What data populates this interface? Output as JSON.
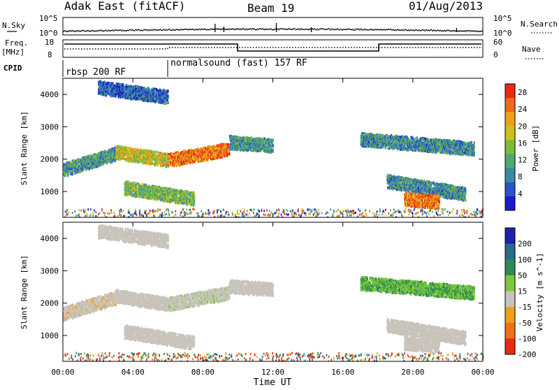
{
  "header": {
    "radar": "Adak East (fitACF)",
    "beam": "Beam 19",
    "date": "01/Aug/2013"
  },
  "top_panels": {
    "nsky_label": "N.Sky",
    "nsearch_label": "N.Search",
    "noise_ticks_left": [
      "10^5",
      "10^0"
    ],
    "noise_ticks_right": [
      "10^5",
      "10^0"
    ],
    "freq_label_line1": "Freq.",
    "freq_label_line2": "[MHz]",
    "freq_ticks": [
      "18",
      "8"
    ],
    "nave_label": "Nave",
    "nave_ticks": [
      "60",
      "0"
    ],
    "cpid_label": "CPID",
    "cpid_segments": [
      {
        "label": "rbsp 200 RF",
        "start_hour": 0,
        "end_hour": 6
      },
      {
        "label": "normalsound (fast) 157 RF",
        "start_hour": 6,
        "end_hour": 24
      }
    ]
  },
  "chart_data": [
    {
      "type": "heatmap",
      "title": "",
      "xlabel": "Time UT",
      "ylabel": "Slant Range [km]",
      "xlim": [
        0,
        24
      ],
      "ylim": [
        200,
        4500
      ],
      "x_ticks": [
        "00:00",
        "04:00",
        "08:00",
        "12:00",
        "16:00",
        "20:00",
        "00:00"
      ],
      "y_ticks": [
        1000,
        2000,
        3000,
        4000
      ],
      "colorbar": {
        "label": "Power [dB]",
        "ticks": [
          4,
          8,
          12,
          16,
          20,
          24,
          28
        ],
        "range": [
          0,
          30
        ],
        "colors": [
          "#1a1acc",
          "#2a55c8",
          "#3b8aa5",
          "#4fa870",
          "#7dbb3a",
          "#c9c21e",
          "#f0a018",
          "#f06818",
          "#e82a10"
        ]
      },
      "features": [
        {
          "name": "band-a",
          "start_hour": 0.0,
          "end_hour": 3.0,
          "range_start_km": 1650,
          "range_end_km": 2150,
          "value": 10
        },
        {
          "name": "band-b",
          "start_hour": 3.0,
          "end_hour": 6.0,
          "range_start_km": 2200,
          "range_end_km": 1950,
          "value": 18
        },
        {
          "name": "band-c",
          "start_hour": 6.0,
          "end_hour": 9.5,
          "range_start_km": 1950,
          "range_end_km": 2300,
          "value": 24
        },
        {
          "name": "band-d",
          "start_hour": 9.5,
          "end_hour": 12.0,
          "range_start_km": 2500,
          "range_end_km": 2400,
          "value": 10
        },
        {
          "name": "upper-patch",
          "start_hour": 2.0,
          "end_hour": 6.0,
          "range_start_km": 4200,
          "range_end_km": 3900,
          "value": 6
        },
        {
          "name": "lower-patch",
          "start_hour": 3.5,
          "end_hour": 7.5,
          "range_start_km": 1100,
          "range_end_km": 750,
          "value": 14
        },
        {
          "name": "evening-band",
          "start_hour": 17.0,
          "end_hour": 23.5,
          "range_start_km": 2600,
          "range_end_km": 2300,
          "value": 9
        },
        {
          "name": "evening-lower",
          "start_hour": 18.5,
          "end_hour": 23.0,
          "range_start_km": 1300,
          "range_end_km": 900,
          "value": 9
        },
        {
          "name": "evening-core",
          "start_hour": 19.5,
          "end_hour": 21.5,
          "range_start_km": 750,
          "range_end_km": 650,
          "value": 24
        }
      ]
    },
    {
      "type": "heatmap",
      "title": "",
      "xlabel": "Time UT",
      "ylabel": "Slant Range [km]",
      "xlim": [
        0,
        24
      ],
      "ylim": [
        200,
        4500
      ],
      "x_ticks": [
        "00:00",
        "04:00",
        "08:00",
        "12:00",
        "16:00",
        "20:00",
        "00:00"
      ],
      "y_ticks": [
        1000,
        2000,
        3000,
        4000
      ],
      "colorbar": {
        "label": "Velocity [m s^-1]",
        "ticks": [
          200,
          100,
          50,
          15,
          -15,
          -50,
          -100,
          -200
        ],
        "colors": [
          "#2020b0",
          "#2a6a8a",
          "#2e8a55",
          "#7cc83a",
          "#c8c4bc",
          "#f0a018",
          "#f07018",
          "#e82a10"
        ]
      },
      "features": [
        {
          "name": "band-a",
          "start_hour": 0.0,
          "end_hour": 3.0,
          "range_start_km": 1650,
          "range_end_km": 2150,
          "value": -5
        },
        {
          "name": "band-b",
          "start_hour": 3.0,
          "end_hour": 6.0,
          "range_start_km": 2200,
          "range_end_km": 1950,
          "value": 0
        },
        {
          "name": "band-c",
          "start_hour": 6.0,
          "end_hour": 9.5,
          "range_start_km": 1950,
          "range_end_km": 2300,
          "value": 5
        },
        {
          "name": "band-d",
          "start_hour": 9.5,
          "end_hour": 12.0,
          "range_start_km": 2500,
          "range_end_km": 2400,
          "value": 0
        },
        {
          "name": "upper-patch",
          "start_hour": 2.0,
          "end_hour": 6.0,
          "range_start_km": 4200,
          "range_end_km": 3900,
          "value": 0
        },
        {
          "name": "lower-patch",
          "start_hour": 3.5,
          "end_hour": 7.5,
          "range_start_km": 1100,
          "range_end_km": 750,
          "value": 0
        },
        {
          "name": "evening-band",
          "start_hour": 17.0,
          "end_hour": 23.5,
          "range_start_km": 2600,
          "range_end_km": 2300,
          "value": 30
        },
        {
          "name": "evening-lower",
          "start_hour": 18.5,
          "end_hour": 23.0,
          "range_start_km": 1300,
          "range_end_km": 900,
          "value": 0
        },
        {
          "name": "evening-core",
          "start_hour": 19.5,
          "end_hour": 21.5,
          "range_start_km": 750,
          "range_end_km": 650,
          "value": 0
        }
      ]
    }
  ]
}
